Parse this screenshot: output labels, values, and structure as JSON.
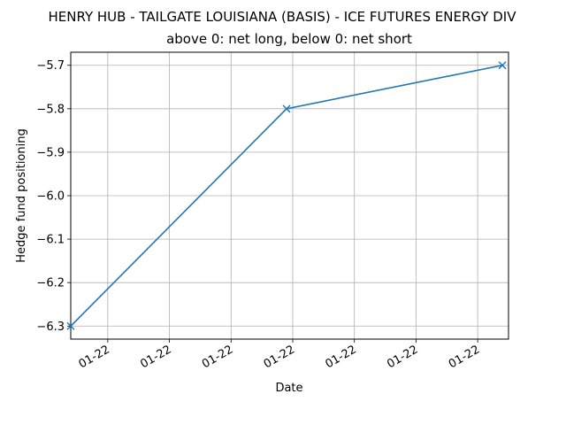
{
  "chart_data": {
    "type": "line",
    "title": "HENRY HUB - TAILGATE LOUISIANA (BASIS) - ICE FUTURES ENERGY DIV",
    "subtitle": "above 0: net long, below 0: net short",
    "xlabel": "Date",
    "ylabel": "Hedge fund positioning",
    "x_tick_labels": [
      "01-22",
      "01-22",
      "01-22",
      "01-22",
      "01-22",
      "01-22",
      "01-22"
    ],
    "x_ticks": [
      0.6,
      1.6,
      2.6,
      3.6,
      4.6,
      5.6,
      6.6
    ],
    "y_ticks": [
      -6.3,
      -6.2,
      -6.1,
      -6.0,
      -5.9,
      -5.8,
      -5.7
    ],
    "y_tick_labels": [
      "−6.3",
      "−6.2",
      "−6.1",
      "−6.0",
      "−5.9",
      "−5.8",
      "−5.7"
    ],
    "xlim": [
      0,
      7.1
    ],
    "ylim": [
      -6.33,
      -5.67
    ],
    "grid": true,
    "series": [
      {
        "x": [
          0.0,
          3.5,
          7.0
        ],
        "y": [
          -6.3,
          -5.8,
          -5.7
        ],
        "color": "#1f77b4",
        "marker": "x"
      }
    ]
  }
}
